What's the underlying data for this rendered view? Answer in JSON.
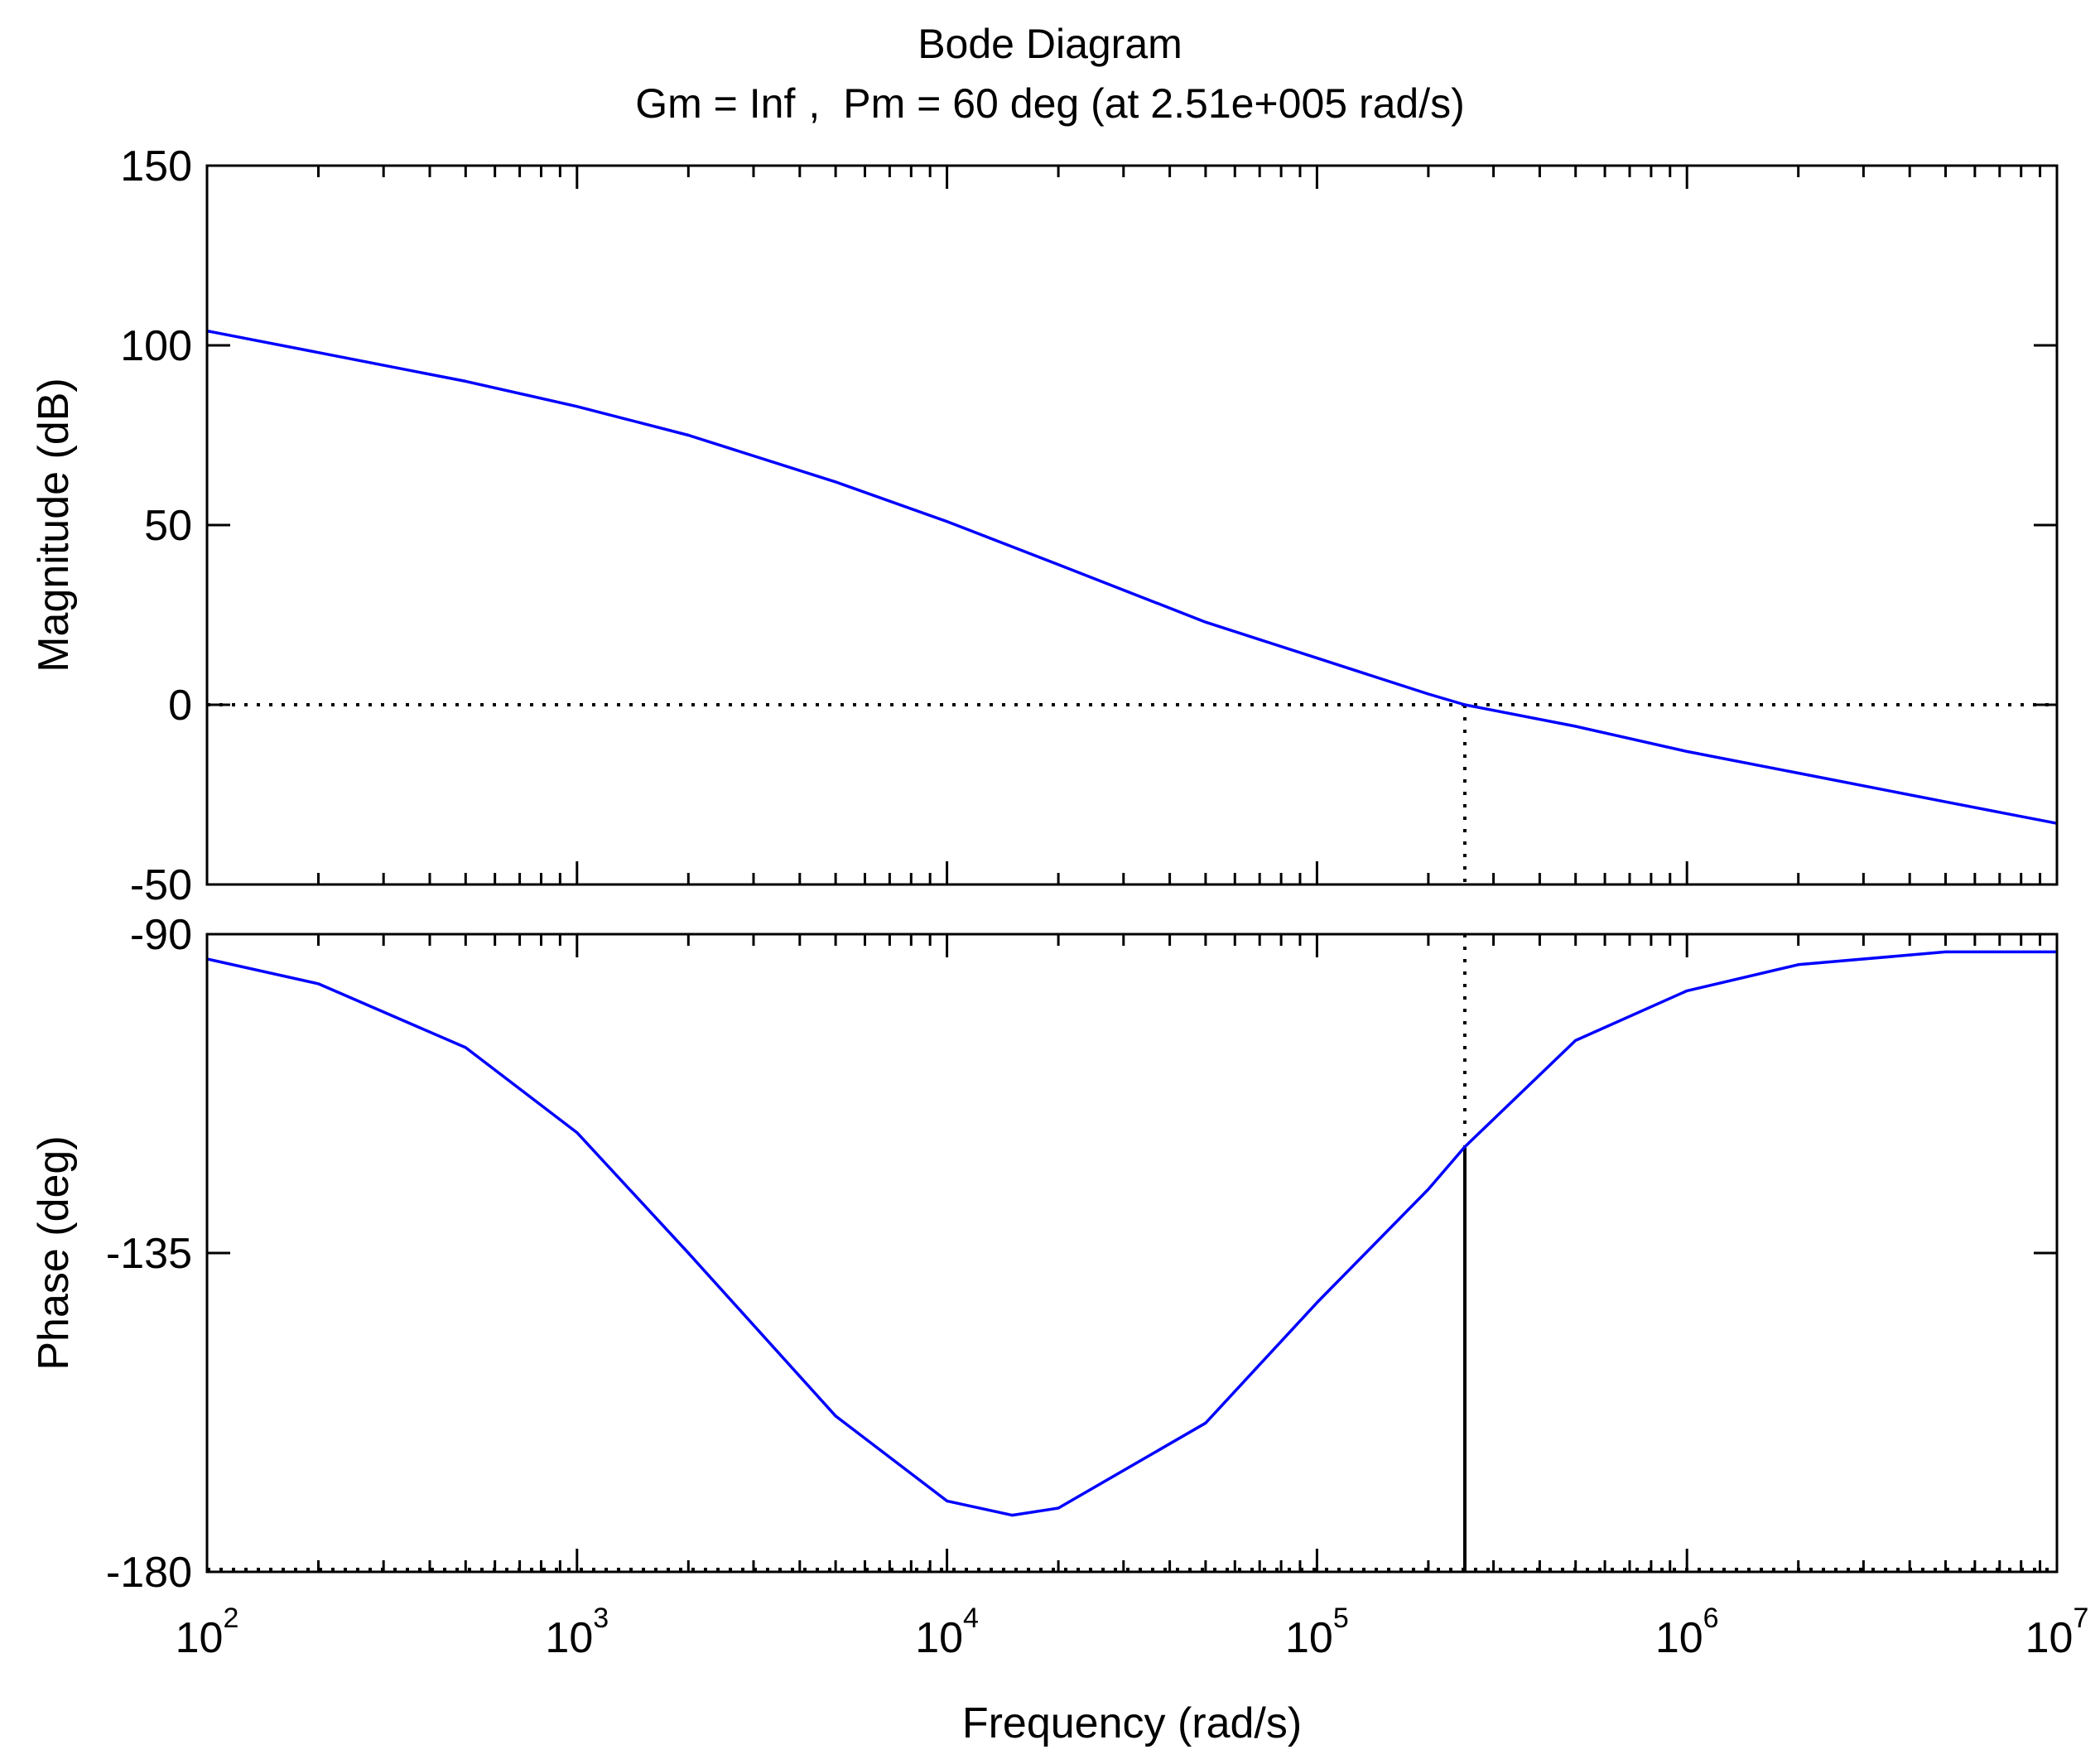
{
  "chart_data": {
    "type": "line",
    "title": "Bode Diagram",
    "subtitle_parts": {
      "gm": "Gm = Inf",
      "separator": ",",
      "pm": "Pm = 60 deg (at 2.51e+005 rad/s)"
    },
    "xlabel": "Frequency  (rad/s)",
    "x_scale": "log",
    "xlim": [
      100,
      10000000
    ],
    "x_tick_labels": [
      {
        "base": "10",
        "exp": "2"
      },
      {
        "base": "10",
        "exp": "3"
      },
      {
        "base": "10",
        "exp": "4"
      },
      {
        "base": "10",
        "exp": "5"
      },
      {
        "base": "10",
        "exp": "6"
      },
      {
        "base": "10",
        "exp": "7"
      }
    ],
    "curve_color": "#0000ff",
    "marker_color": "#000000",
    "crossover_frequency": 251000,
    "magnitude": {
      "ylabel": "Magnitude (dB)",
      "ylim": [
        -50,
        150
      ],
      "yticks": [
        -50,
        0,
        50,
        100,
        150
      ],
      "ytick_labels": [
        "-50",
        "0",
        "50",
        "100",
        "150"
      ],
      "series": [
        {
          "name": "Magnitude",
          "x": [
            100,
            200,
            500,
            1000,
            2000,
            5000,
            10000,
            20000,
            50000,
            100000,
            200000,
            251000,
            500000,
            1000000,
            2000000,
            5000000,
            10000000
          ],
          "y": [
            104,
            98,
            90,
            83,
            75,
            62,
            51,
            39,
            23,
            13,
            3,
            0,
            -6,
            -13,
            -19,
            -27,
            -33
          ]
        }
      ],
      "reference_line": 0
    },
    "phase": {
      "ylabel": "Phase (deg)",
      "ylim": [
        -180,
        -90
      ],
      "yticks": [
        -180,
        -135,
        -90
      ],
      "ytick_labels": [
        "-180",
        "-135",
        "-90"
      ],
      "series": [
        {
          "name": "Phase",
          "x": [
            100,
            200,
            500,
            1000,
            2000,
            5000,
            10000,
            15000,
            20000,
            50000,
            100000,
            200000,
            251000,
            500000,
            1000000,
            2000000,
            5000000,
            10000000
          ],
          "y": [
            -93.5,
            -97,
            -106,
            -118,
            -135,
            -158,
            -170,
            -172,
            -171,
            -159,
            -142,
            -126,
            -120,
            -105,
            -98,
            -94.3,
            -92.5,
            -92.5
          ]
        }
      ],
      "reference_line": -180,
      "phase_at_crossover": -120
    }
  }
}
